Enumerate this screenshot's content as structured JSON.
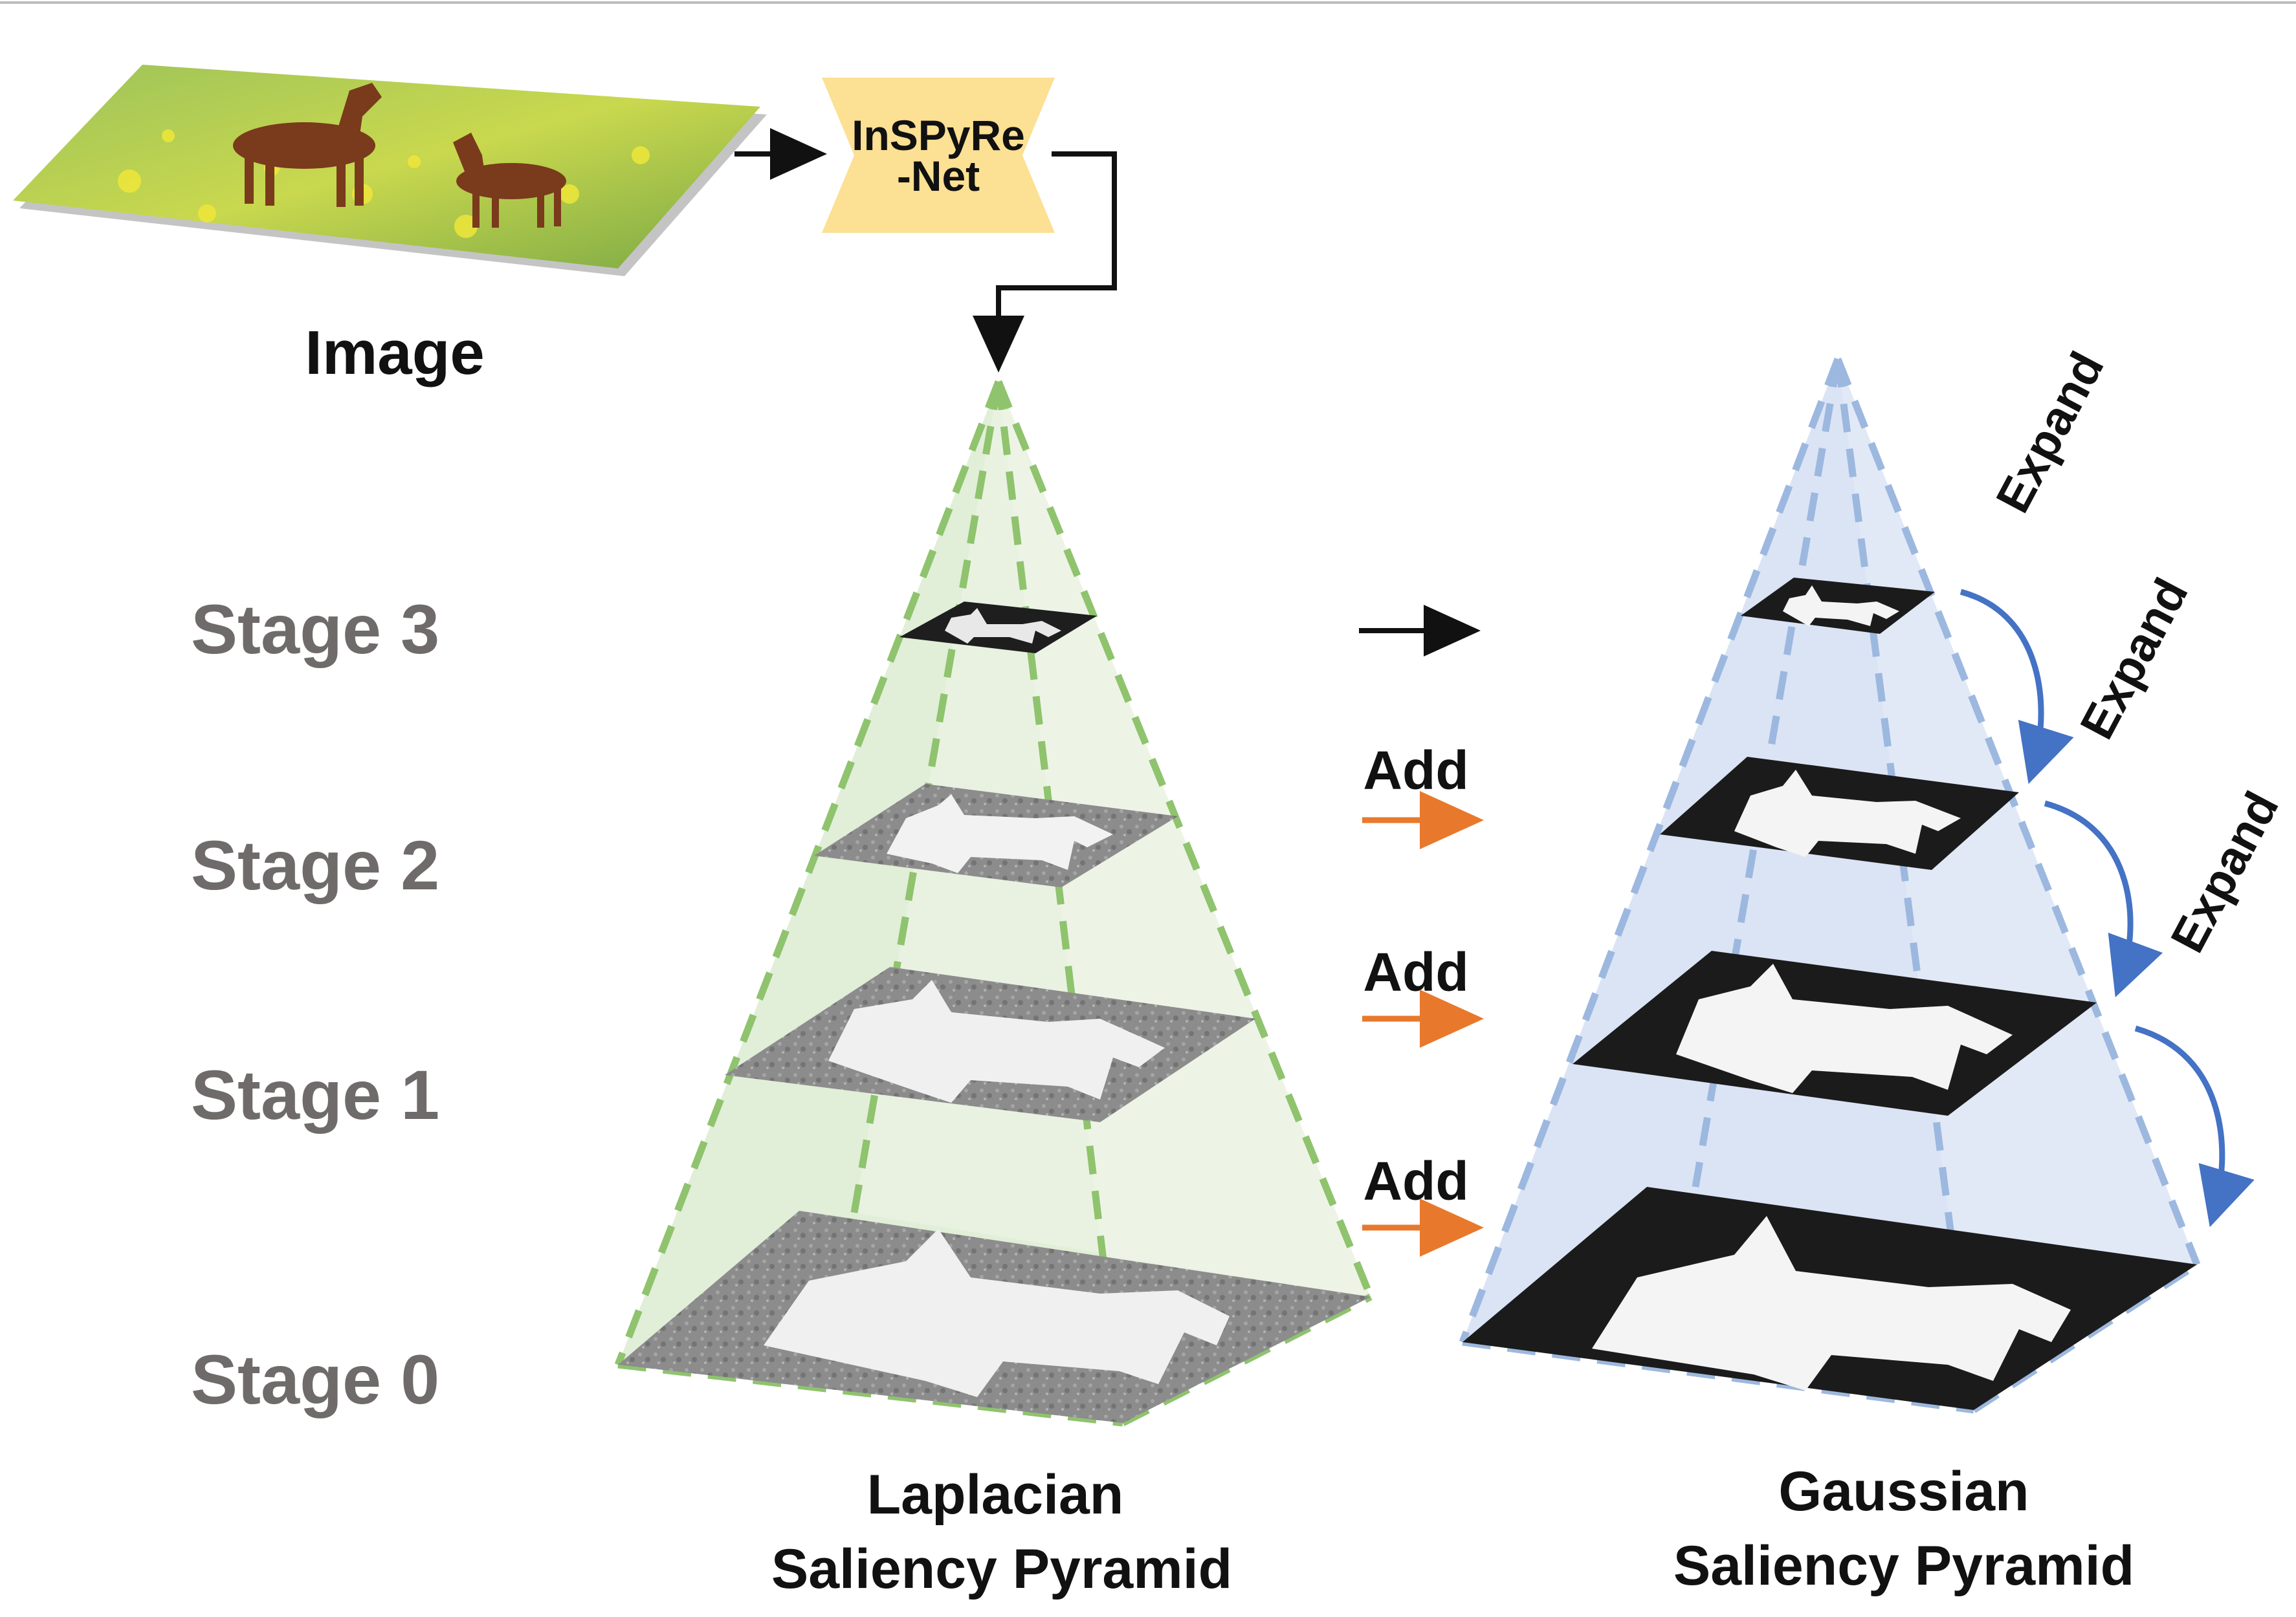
{
  "input": {
    "label": "Image",
    "network_label_line1": "InSPyRe",
    "network_label_line2": "-Net"
  },
  "stages": [
    {
      "label": "Stage 3"
    },
    {
      "label": "Stage 2"
    },
    {
      "label": "Stage 1"
    },
    {
      "label": "Stage 0"
    }
  ],
  "operations": {
    "add_label": "Add",
    "expand_label": "Expand"
  },
  "laplacian": {
    "title_line1": "Laplacian",
    "title_line2": "Saliency Pyramid"
  },
  "gaussian": {
    "title_line1": "Gaussian",
    "title_line2": "Saliency Pyramid"
  },
  "colors": {
    "laplacian_fill": "#dcebd1",
    "laplacian_edge": "#8fc36e",
    "gaussian_fill": "#d6e1f4",
    "gaussian_edge": "#9db8df",
    "network_box": "#fce093",
    "add_arrow": "#e8792c",
    "expand_arrow": "#4472c4",
    "stage_text": "#6f6b6b",
    "text": "#111111"
  }
}
